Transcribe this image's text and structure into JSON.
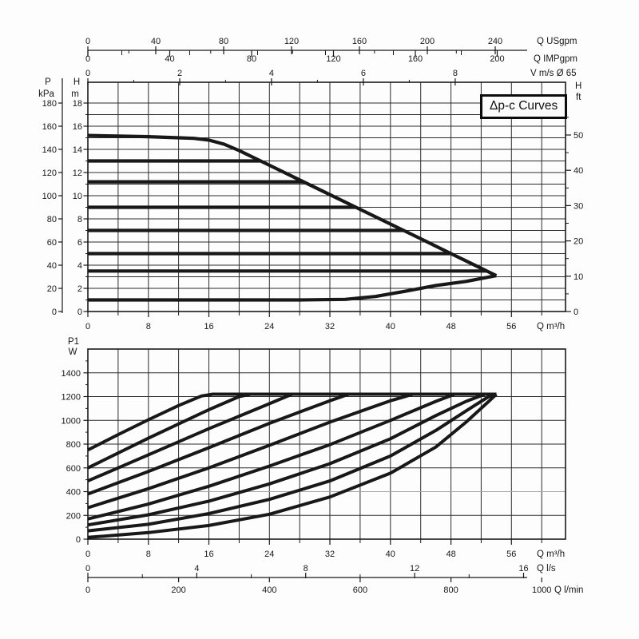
{
  "page": {
    "background": "#fdfdfd"
  },
  "colors": {
    "ink": "#181818",
    "grid": "#2b2b2b",
    "border": "#1a1a1a",
    "gray_gridline": "#a6a6a6",
    "badge_bg": "#fbfbfb"
  },
  "badge": {
    "label": "Δp-c Curves"
  },
  "chart_data": [
    {
      "type": "line",
      "name": "head-vs-flow",
      "title": "Δp-c Curves",
      "x_axes": {
        "usgpm": {
          "label": "Q USgpm",
          "m3h_per_unit": 0.2244,
          "major": [
            0,
            40,
            80,
            120,
            160,
            200,
            240
          ],
          "minor": [
            20,
            60,
            100,
            140,
            180,
            220
          ]
        },
        "impgpm": {
          "label": "Q IMPgpm",
          "m3h_per_unit": 0.2706,
          "major": [
            0,
            40,
            80,
            120,
            160,
            200
          ],
          "minor": [
            20,
            60,
            100,
            140,
            180
          ]
        },
        "velocity": {
          "label": "V m/s Ø 65",
          "m3h_per_unit": 6.07,
          "major": [
            0,
            2,
            4,
            6,
            8
          ],
          "minor": [
            1,
            3,
            5,
            7
          ]
        },
        "m3h": {
          "label": "Q m³/h",
          "major": [
            0,
            8,
            16,
            24,
            32,
            40,
            48,
            56
          ],
          "minor": [
            4,
            12,
            20,
            28,
            36,
            44,
            52,
            60
          ],
          "grid_step": 4,
          "grid_max": 60,
          "range": [
            0,
            63
          ]
        }
      },
      "y_axes": {
        "kpa": {
          "header": "P",
          "unit": "kPa",
          "major": [
            0,
            20,
            40,
            60,
            80,
            100,
            120,
            140,
            160,
            180
          ],
          "kpa_per_m": 10
        },
        "m": {
          "header": "H",
          "unit": "m",
          "major": [
            0,
            2,
            4,
            6,
            8,
            10,
            12,
            14,
            16,
            18
          ],
          "minor": [
            1,
            3,
            5,
            7,
            9,
            11,
            13,
            15,
            17
          ],
          "grid_step": 1,
          "grid_max": 18,
          "range": [
            0,
            19.8
          ]
        },
        "ft": {
          "header": "H",
          "unit": "ft",
          "major": [
            0,
            10,
            20,
            30,
            40,
            50
          ],
          "minor": [
            5,
            15,
            25,
            35,
            45,
            55
          ],
          "m_per_ft": 0.3048
        }
      },
      "series": [
        {
          "name": "max-head",
          "points": [
            [
              0,
              15.2
            ],
            [
              4,
              15.15
            ],
            [
              8,
              15.1
            ],
            [
              12,
              15.0
            ],
            [
              14,
              14.95
            ],
            [
              16,
              14.8
            ],
            [
              18,
              14.45
            ],
            [
              20,
              13.9
            ],
            [
              24,
              12.63
            ],
            [
              28,
              11.36
            ],
            [
              32,
              10.09
            ],
            [
              36,
              8.82
            ],
            [
              40,
              7.55
            ],
            [
              44,
              6.28
            ],
            [
              48,
              5.0
            ],
            [
              51,
              4.05
            ],
            [
              54,
              3.1
            ]
          ]
        },
        {
          "name": "dp-13m",
          "points": [
            [
              0,
              13
            ],
            [
              22.8,
              13
            ]
          ]
        },
        {
          "name": "dp-11m",
          "points": [
            [
              0,
              11.2
            ],
            [
              28.5,
              11.2
            ]
          ]
        },
        {
          "name": "dp-9m",
          "points": [
            [
              0,
              9
            ],
            [
              35.4,
              9
            ]
          ]
        },
        {
          "name": "dp-7m",
          "points": [
            [
              0,
              7
            ],
            [
              41.7,
              7
            ]
          ]
        },
        {
          "name": "dp-5m",
          "points": [
            [
              0,
              5
            ],
            [
              48,
              5
            ]
          ]
        },
        {
          "name": "dp-3-5m",
          "points": [
            [
              0,
              3.5
            ],
            [
              52.7,
              3.5
            ]
          ]
        },
        {
          "name": "min-head",
          "points": [
            [
              0,
              1
            ],
            [
              16,
              1
            ],
            [
              28,
              1
            ],
            [
              34,
              1.05
            ],
            [
              38,
              1.3
            ],
            [
              42,
              1.75
            ],
            [
              46,
              2.25
            ],
            [
              50,
              2.6
            ],
            [
              52,
              2.85
            ],
            [
              54,
              3.1
            ]
          ]
        }
      ]
    },
    {
      "type": "line",
      "name": "power-vs-flow",
      "x_axes": {
        "m3h": {
          "label": "Q m³/h",
          "major": [
            0,
            8,
            16,
            24,
            32,
            40,
            48,
            56
          ],
          "minor": [
            4,
            12,
            20,
            28,
            36,
            44,
            52,
            60
          ],
          "grid_step": 4,
          "grid_max": 60,
          "range": [
            0,
            63
          ]
        },
        "ls": {
          "label": "Q l/s",
          "m3h_per_unit": 3.6,
          "major": [
            0,
            4,
            8,
            12,
            16
          ],
          "minor": [
            2,
            6,
            10,
            14
          ]
        },
        "lmin": {
          "label": "Q l/min",
          "m3h_per_unit": 0.06,
          "major": [
            0,
            200,
            400,
            600,
            800,
            1000
          ]
        }
      },
      "y_axes": {
        "w": {
          "header": "P1",
          "unit": "W",
          "major": [
            0,
            200,
            400,
            600,
            800,
            1000,
            1200,
            1400
          ],
          "minor_step": 100,
          "grid_step": 200,
          "grid_max": 1400,
          "range": [
            0,
            1600
          ],
          "gray_gridline_at": 400
        }
      },
      "series": [
        {
          "name": "power-curve-1",
          "points": [
            [
              0,
              750
            ],
            [
              4,
              880
            ],
            [
              8,
              1005
            ],
            [
              12,
              1125
            ],
            [
              15,
              1205
            ],
            [
              16.5,
              1220
            ],
            [
              54,
              1220
            ]
          ]
        },
        {
          "name": "power-curve-2",
          "points": [
            [
              0,
              600
            ],
            [
              8,
              850
            ],
            [
              16,
              1090
            ],
            [
              20,
              1200
            ],
            [
              21.5,
              1220
            ],
            [
              54,
              1220
            ]
          ]
        },
        {
          "name": "power-curve-3",
          "points": [
            [
              0,
              490
            ],
            [
              8,
              710
            ],
            [
              16,
              930
            ],
            [
              24,
              1140
            ],
            [
              27,
              1220
            ],
            [
              54,
              1220
            ]
          ]
        },
        {
          "name": "power-curve-4",
          "points": [
            [
              0,
              380
            ],
            [
              8,
              570
            ],
            [
              16,
              770
            ],
            [
              24,
              975
            ],
            [
              32,
              1165
            ],
            [
              34.5,
              1220
            ],
            [
              54,
              1220
            ]
          ]
        },
        {
          "name": "power-curve-5",
          "points": [
            [
              0,
              265
            ],
            [
              8,
              425
            ],
            [
              16,
              600
            ],
            [
              24,
              790
            ],
            [
              32,
              985
            ],
            [
              40,
              1165
            ],
            [
              43,
              1220
            ],
            [
              54,
              1220
            ]
          ]
        },
        {
          "name": "power-curve-6",
          "points": [
            [
              0,
              170
            ],
            [
              8,
              295
            ],
            [
              16,
              445
            ],
            [
              24,
              615
            ],
            [
              32,
              795
            ],
            [
              40,
              1000
            ],
            [
              46,
              1160
            ],
            [
              48.5,
              1220
            ],
            [
              54,
              1220
            ]
          ]
        },
        {
          "name": "power-curve-7",
          "points": [
            [
              0,
              120
            ],
            [
              8,
              205
            ],
            [
              16,
              320
            ],
            [
              24,
              465
            ],
            [
              32,
              635
            ],
            [
              40,
              845
            ],
            [
              46,
              1040
            ],
            [
              50,
              1160
            ],
            [
              52.5,
              1220
            ],
            [
              54,
              1220
            ]
          ]
        },
        {
          "name": "power-curve-8",
          "points": [
            [
              0,
              70
            ],
            [
              8,
              125
            ],
            [
              16,
              215
            ],
            [
              24,
              335
            ],
            [
              32,
              490
            ],
            [
              40,
              700
            ],
            [
              46,
              915
            ],
            [
              50,
              1080
            ],
            [
              53,
              1200
            ],
            [
              54,
              1220
            ]
          ]
        },
        {
          "name": "power-curve-9",
          "points": [
            [
              0,
              15
            ],
            [
              8,
              55
            ],
            [
              16,
              115
            ],
            [
              24,
              210
            ],
            [
              32,
              355
            ],
            [
              40,
              555
            ],
            [
              46,
              775
            ],
            [
              50,
              985
            ],
            [
              53,
              1160
            ],
            [
              54,
              1220
            ]
          ]
        }
      ]
    }
  ]
}
